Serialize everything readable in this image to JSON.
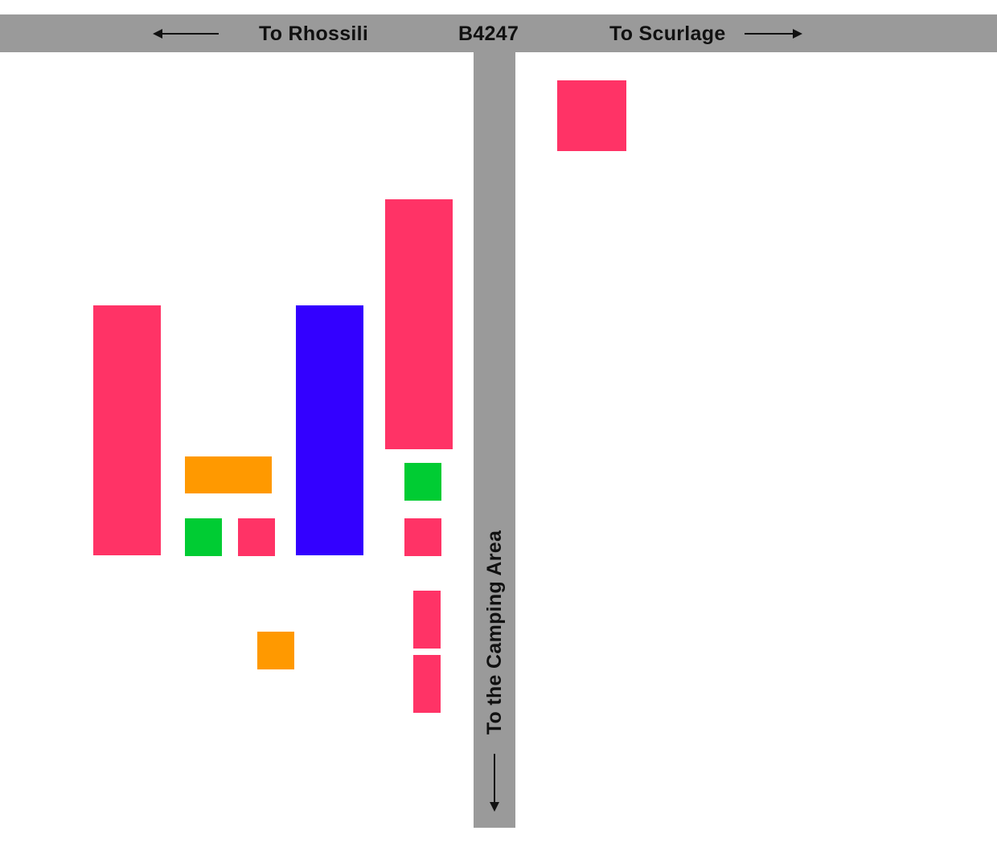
{
  "colors": {
    "road": "#9a9a9a",
    "pink": "#ff3366",
    "blue": "#3300ff",
    "orange": "#ff9900",
    "green": "#00cc33",
    "text": "#111111"
  },
  "roads": {
    "main": {
      "name": "B4247",
      "left_destination": "To Rhossili",
      "right_destination": "To Scurlage"
    },
    "access": {
      "destination": "To the Camping Area"
    }
  },
  "icons": {
    "left_arrow": "arrow-left-icon",
    "right_arrow": "arrow-right-icon",
    "down_arrow": "arrow-down-icon"
  },
  "blocks": [
    {
      "id": "b1",
      "color": "pink"
    },
    {
      "id": "b2",
      "color": "pink"
    },
    {
      "id": "b3",
      "color": "pink"
    },
    {
      "id": "b4",
      "color": "blue"
    },
    {
      "id": "b5",
      "color": "orange"
    },
    {
      "id": "b6",
      "color": "green"
    },
    {
      "id": "b7",
      "color": "green"
    },
    {
      "id": "b8",
      "color": "pink"
    },
    {
      "id": "b9",
      "color": "pink"
    },
    {
      "id": "b10",
      "color": "pink"
    },
    {
      "id": "b11",
      "color": "orange"
    },
    {
      "id": "b12",
      "color": "pink"
    }
  ]
}
